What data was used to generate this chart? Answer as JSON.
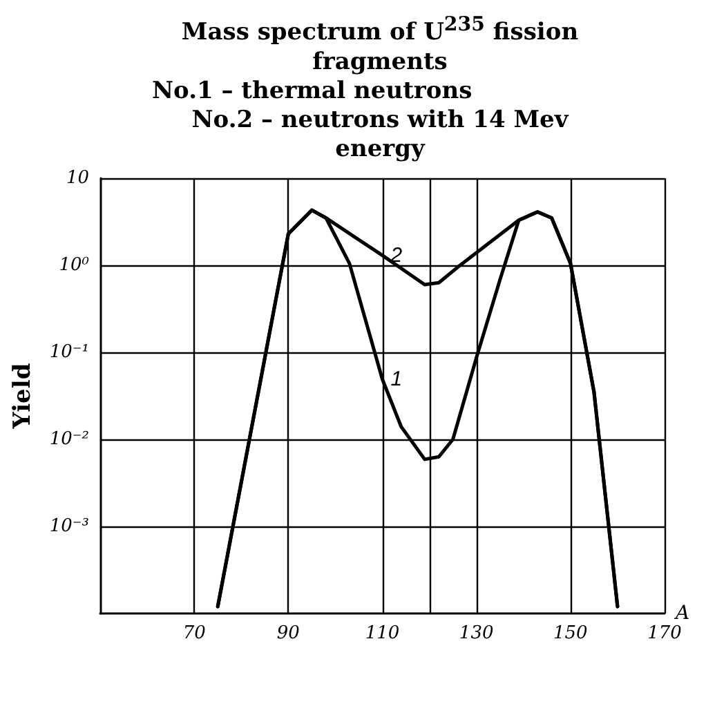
{
  "chart_data": {
    "type": "line",
    "title": "Mass spectrum of U$^{235}$ fission fragments",
    "subtitle": "No.1 – thermal neutrons\nNo.2 – neutrons with 14 Mev energy",
    "xlabel": "A",
    "ylabel": "Yield",
    "xlim": [
      50,
      170
    ],
    "xticks": [
      70,
      90,
      110,
      {
        "value": 120,
        "label": null
      },
      130,
      150,
      170
    ],
    "ylim": [
      0.0001,
      10
    ],
    "yticks": [
      {
        "value": 10,
        "label": "10"
      },
      {
        "value": 1,
        "label": "10⁰"
      },
      {
        "value": 0.1,
        "label": "10⁻¹"
      },
      {
        "value": 0.01,
        "label": "10⁻²"
      },
      {
        "value": 0.001,
        "label": "10⁻³"
      }
    ],
    "log": "y",
    "grid": true,
    "legend": false,
    "marker": "none",
    "line_style": "solid",
    "series": [
      {
        "name": "1",
        "color": "#000000",
        "x": [
          75,
          90,
          95,
          98,
          103,
          110,
          114,
          119,
          122,
          125,
          130,
          135,
          139,
          143,
          146,
          150,
          155,
          160
        ],
        "values": [
          0.00012,
          2.3,
          4.3,
          3.5,
          1.05,
          0.049,
          0.014,
          0.0059,
          0.0063,
          0.01,
          0.087,
          0.68,
          3.3,
          4.1,
          3.5,
          1.05,
          0.035,
          0.00012
        ]
      },
      {
        "name": "2",
        "color": "#000000",
        "x": [
          75,
          90,
          95,
          98,
          110,
          119,
          122,
          126,
          139,
          143,
          146,
          150,
          155,
          160
        ],
        "values": [
          0.00012,
          2.3,
          4.3,
          3.5,
          1.3,
          0.6,
          0.63,
          0.95,
          3.3,
          4.1,
          3.5,
          1.05,
          0.035,
          0.00012
        ]
      }
    ]
  }
}
